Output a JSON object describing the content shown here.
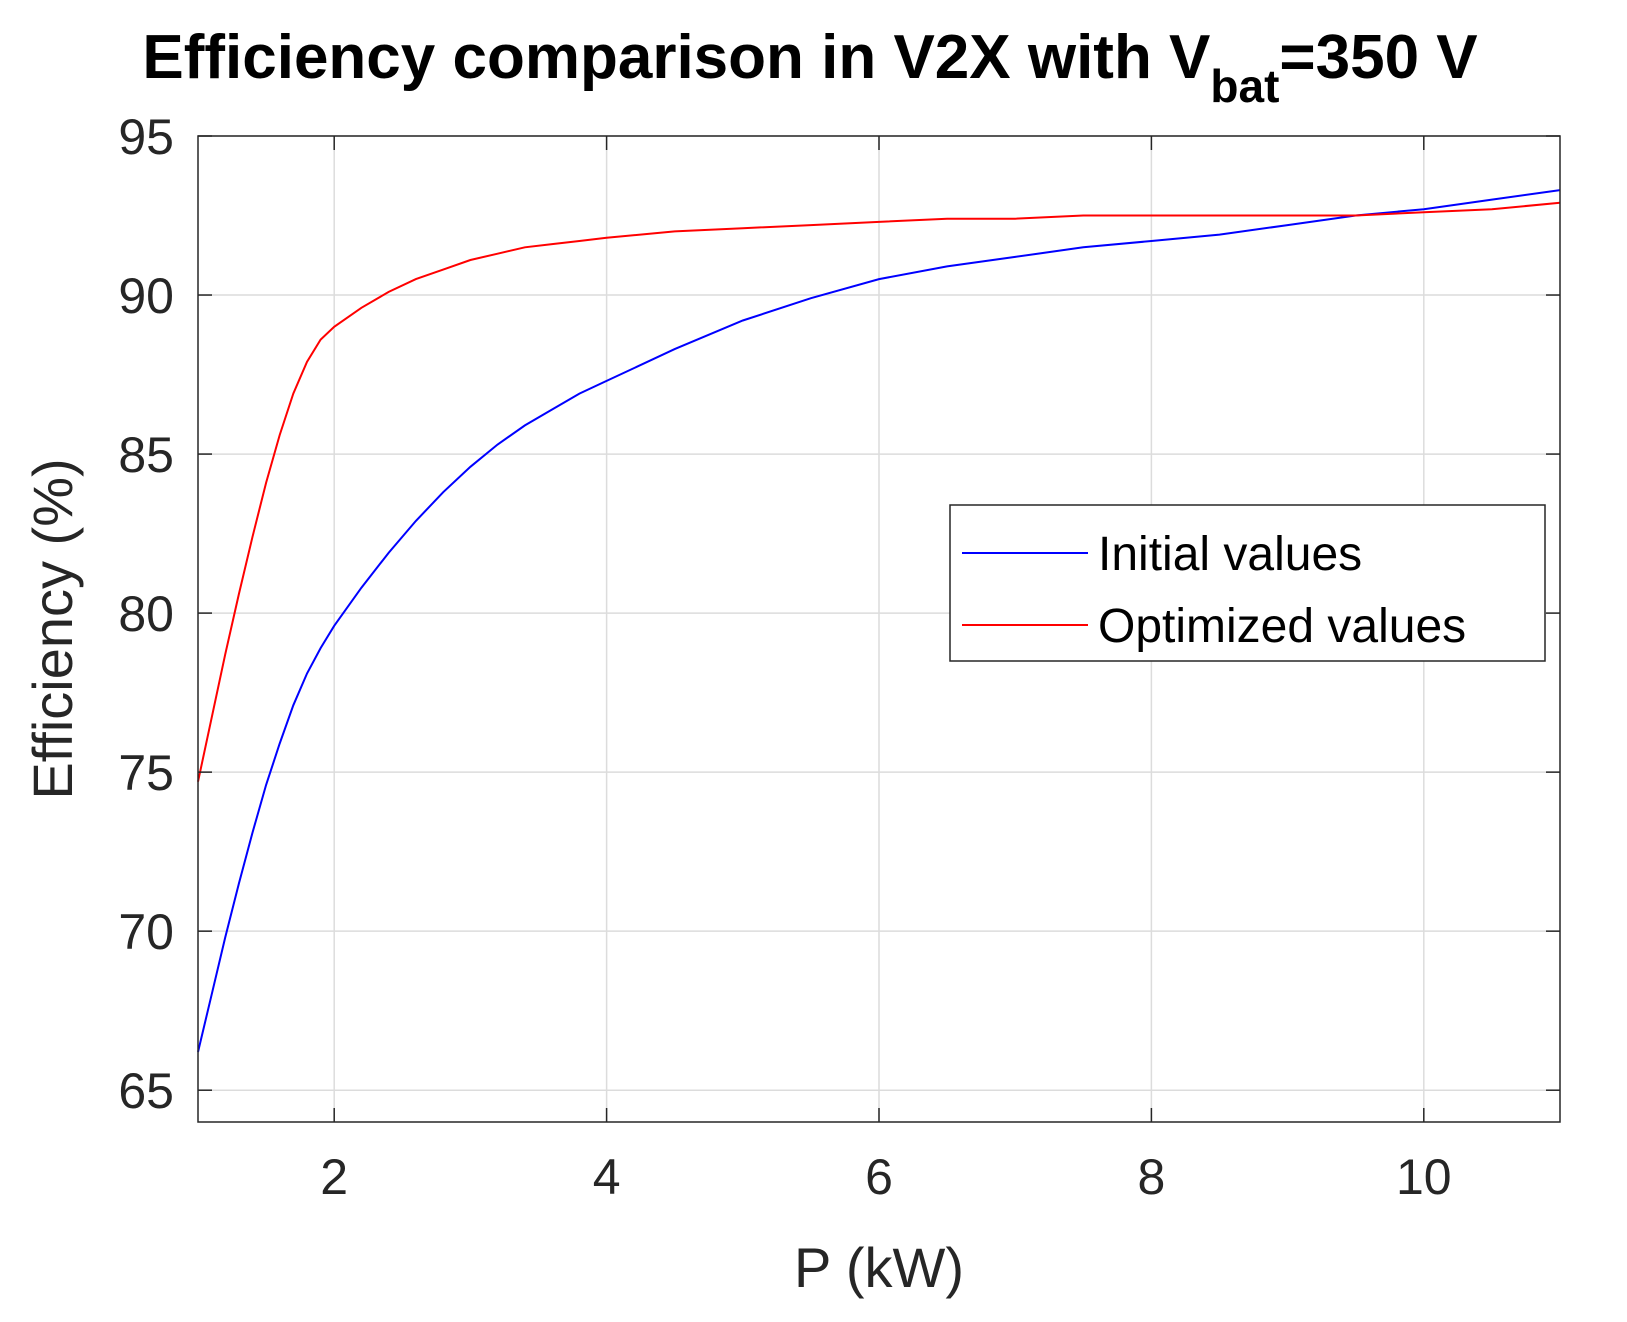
{
  "chart_data": {
    "type": "line",
    "title": {
      "main": "Efficiency comparison in V2X with V",
      "subscript": "bat",
      "suffix": "=350 V"
    },
    "xlabel": "P (kW)",
    "ylabel": "Efficiency (%)",
    "xlim": [
      1,
      11
    ],
    "ylim": [
      64,
      95
    ],
    "xticks": [
      2,
      4,
      6,
      8,
      10
    ],
    "yticks": [
      65,
      70,
      75,
      80,
      85,
      90,
      95
    ],
    "grid": true,
    "box": true,
    "legend_position": "right",
    "series": [
      {
        "name": "Initial values",
        "color": "#0000ff",
        "x": [
          1.0,
          1.1,
          1.2,
          1.3,
          1.4,
          1.5,
          1.6,
          1.7,
          1.8,
          1.9,
          2.0,
          2.2,
          2.4,
          2.6,
          2.8,
          3.0,
          3.2,
          3.4,
          3.6,
          3.8,
          4.0,
          4.5,
          5.0,
          5.5,
          6.0,
          6.5,
          7.0,
          7.5,
          8.0,
          8.5,
          9.0,
          9.5,
          10.0,
          10.5,
          11.0
        ],
        "y": [
          66.2,
          68.0,
          69.8,
          71.5,
          73.1,
          74.6,
          75.9,
          77.1,
          78.1,
          78.9,
          79.6,
          80.8,
          81.9,
          82.9,
          83.8,
          84.6,
          85.3,
          85.9,
          86.4,
          86.9,
          87.3,
          88.3,
          89.2,
          89.9,
          90.5,
          90.9,
          91.2,
          91.5,
          91.7,
          91.9,
          92.2,
          92.5,
          92.7,
          93.0,
          93.3
        ]
      },
      {
        "name": "Optimized values",
        "color": "#ff0000",
        "x": [
          1.0,
          1.1,
          1.2,
          1.3,
          1.4,
          1.5,
          1.6,
          1.7,
          1.8,
          1.9,
          2.0,
          2.2,
          2.4,
          2.6,
          2.8,
          3.0,
          3.2,
          3.4,
          3.6,
          3.8,
          4.0,
          4.5,
          5.0,
          5.5,
          6.0,
          6.5,
          7.0,
          7.5,
          8.0,
          8.5,
          9.0,
          9.5,
          10.0,
          10.5,
          11.0
        ],
        "y": [
          74.7,
          76.7,
          78.7,
          80.6,
          82.4,
          84.1,
          85.6,
          86.9,
          87.9,
          88.6,
          89.0,
          89.6,
          90.1,
          90.5,
          90.8,
          91.1,
          91.3,
          91.5,
          91.6,
          91.7,
          91.8,
          92.0,
          92.1,
          92.2,
          92.3,
          92.4,
          92.4,
          92.5,
          92.5,
          92.5,
          92.5,
          92.5,
          92.6,
          92.7,
          92.9
        ]
      }
    ]
  }
}
